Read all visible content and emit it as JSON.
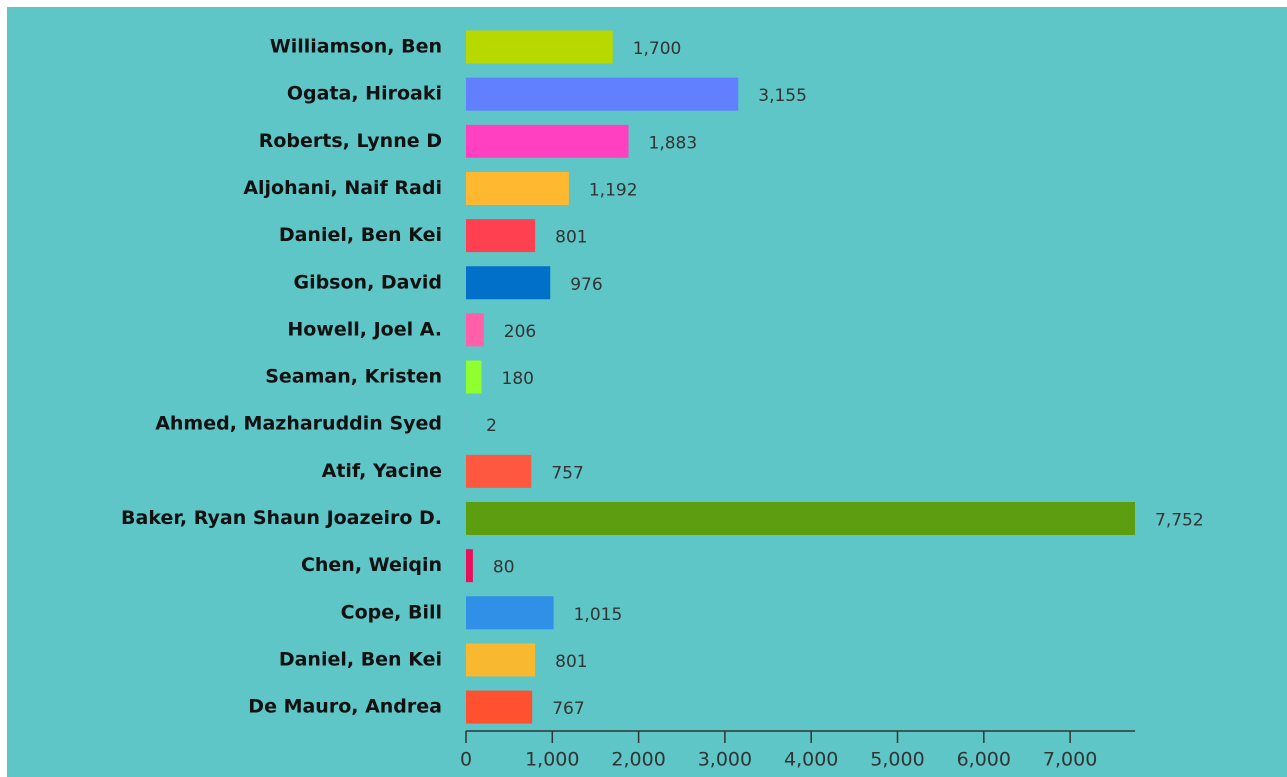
{
  "chart_data": {
    "type": "bar",
    "orientation": "horizontal",
    "categories": [
      "Williamson, Ben",
      "Ogata, Hiroaki",
      "Roberts, Lynne D",
      "Aljohani, Naif Radi",
      "Daniel, Ben Kei",
      "Gibson, David",
      "Howell, Joel A.",
      "Seaman, Kristen",
      "Ahmed, Mazharuddin Syed",
      "Atif, Yacine",
      "Baker, Ryan Shaun Joazeiro D.",
      "Chen, Weiqin",
      "Cope, Bill",
      "Daniel, Ben Kei",
      "De Mauro, Andrea"
    ],
    "values": [
      1700,
      3155,
      1883,
      1192,
      801,
      976,
      206,
      180,
      2,
      757,
      7752,
      80,
      1015,
      801,
      767
    ],
    "value_labels": [
      "1,700",
      "3,155",
      "1,883",
      "1,192",
      "801",
      "976",
      "206",
      "180",
      "2",
      "757",
      "7,752",
      "80",
      "1,015",
      "801",
      "767"
    ],
    "colors": [
      "#b8d900",
      "#6080ff",
      "#ff40c0",
      "#ffb830",
      "#ff4050",
      "#0070c8",
      "#ff60a8",
      "#90ff30",
      "#a0a0ff",
      "#ff5840",
      "#5c9e10",
      "#e8105a",
      "#3090e8",
      "#f8b830",
      "#ff5030"
    ],
    "xlim": [
      0,
      7752
    ],
    "xticks": [
      0,
      {
        "value": 1000,
        "label": "1,000"
      },
      {
        "value": 2000,
        "label": "2,000"
      },
      {
        "value": 3000,
        "label": "3,000"
      },
      {
        "value": 4000,
        "label": "4,000"
      },
      {
        "value": 5000,
        "label": "5,000"
      },
      {
        "value": 6000,
        "label": "6,000"
      },
      {
        "value": 7000,
        "label": "7,000"
      }
    ]
  }
}
